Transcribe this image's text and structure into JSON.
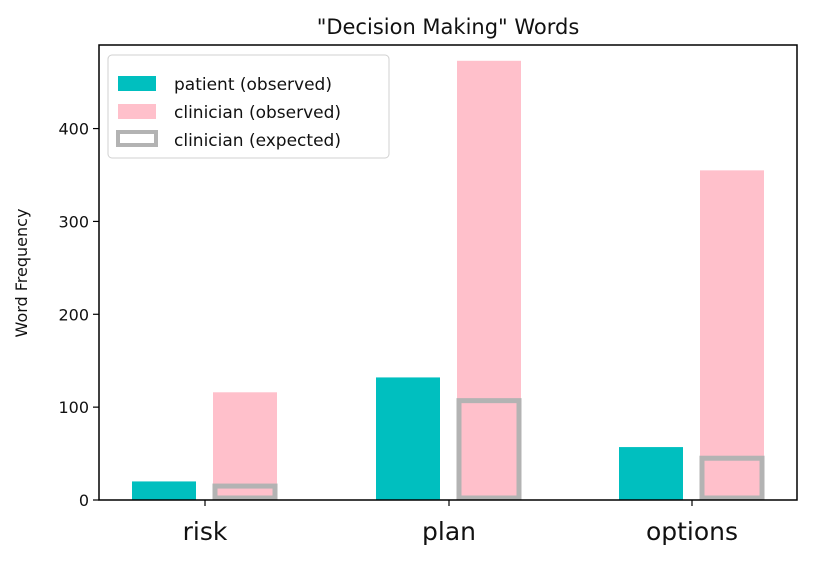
{
  "chart_data": {
    "type": "bar",
    "title": "\"Decision Making\" Words",
    "xlabel": "",
    "ylabel": "Word Frequency",
    "categories": [
      "risk",
      "plan",
      "options"
    ],
    "series": [
      {
        "name": "patient (observed)",
        "style": "filled",
        "color": "#00bfbf",
        "values": [
          20,
          132,
          57
        ]
      },
      {
        "name": "clinician (observed)",
        "style": "filled",
        "color": "#ffc0cb",
        "values": [
          116,
          473,
          355
        ]
      },
      {
        "name": "clinician (expected)",
        "style": "outline",
        "color": "#b3b3b3",
        "values": [
          15,
          107,
          45
        ]
      }
    ],
    "ylim": [
      0,
      490
    ],
    "yticks": [
      0,
      100,
      200,
      300,
      400
    ],
    "grid": false,
    "legend": "top-left"
  }
}
